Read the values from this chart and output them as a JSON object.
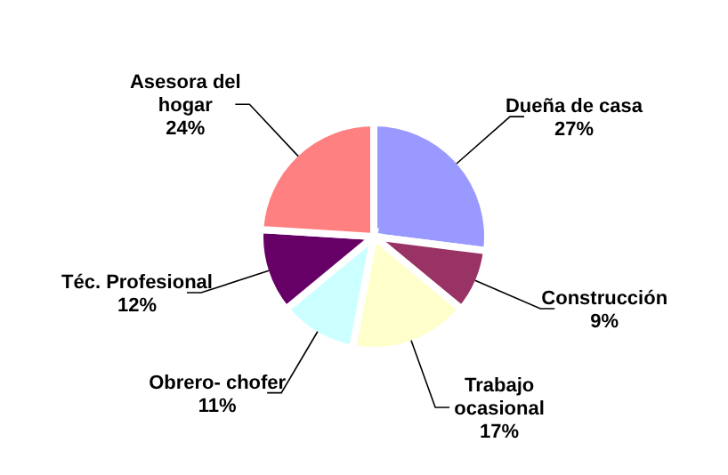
{
  "chart_data": {
    "type": "pie",
    "categories": [
      "Dueña de casa",
      "Construcción",
      "Trabajo ocasional",
      "Obrero- chofer",
      "Téc. Profesional",
      "Asesora del hogar"
    ],
    "values": [
      27,
      9,
      17,
      11,
      12,
      24
    ],
    "colors": [
      "#9999ff",
      "#993366",
      "#ffffcc",
      "#ccffff",
      "#660066",
      "#ff8080"
    ],
    "value_labels": [
      "27%",
      "9%",
      "17%",
      "11%",
      "12%",
      "24%"
    ]
  }
}
